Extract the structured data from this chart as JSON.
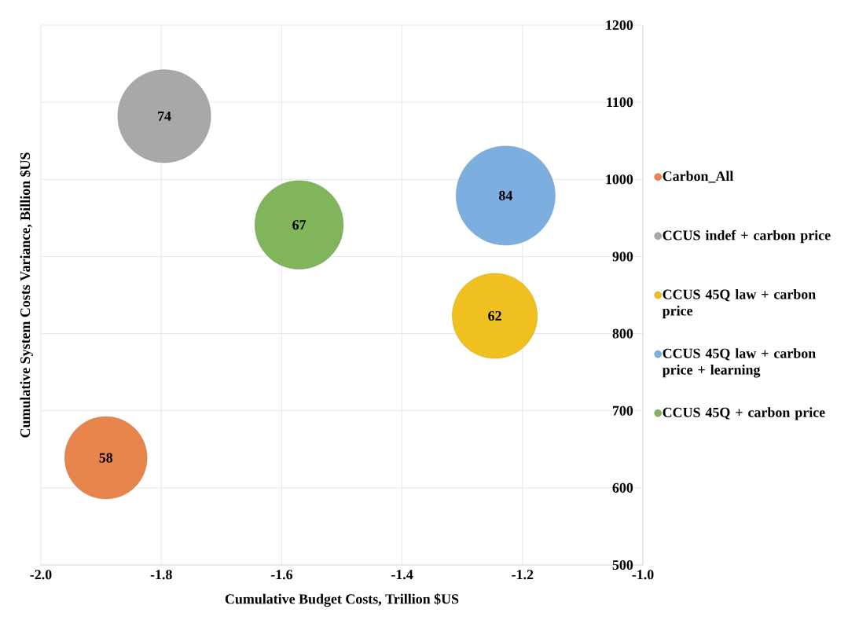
{
  "chart_data": {
    "type": "bubble",
    "xlabel": "Cumulative Budget Costs, Trillion $US",
    "ylabel": "Cumulative System Costs Variance, Billion $US",
    "xlim": [
      -2.0,
      -1.0
    ],
    "xticks": [
      {
        "value": -2.0,
        "label": "-2.0"
      },
      -1.8,
      -1.6,
      -1.4,
      -1.2,
      {
        "value": -1.0,
        "label": "-1.0"
      }
    ],
    "ylim": [
      500,
      1200
    ],
    "yticks": [
      500,
      600,
      700,
      800,
      900,
      1000,
      1100,
      1200
    ],
    "grid": true,
    "legend": "right",
    "series": [
      {
        "name": "Carbon_All",
        "color": "#e8854c",
        "x": [
          -1.892
        ],
        "values": [
          639
        ],
        "sizes": [
          58
        ],
        "value_labels": [
          "58"
        ]
      },
      {
        "name": "CCUS indef + carbon price",
        "color": "#a8a8a8",
        "x": [
          -1.795
        ],
        "values": [
          1082
        ],
        "sizes": [
          74
        ],
        "value_labels": [
          "74"
        ]
      },
      {
        "name": "CCUS 45Q law + carbon price",
        "color": "#f0c020",
        "x": [
          -1.246
        ],
        "values": [
          823
        ],
        "sizes": [
          62
        ],
        "value_labels": [
          "62"
        ]
      },
      {
        "name": "CCUS 45Q law + carbon price + learning",
        "color": "#7cafe0",
        "x": [
          -1.228
        ],
        "values": [
          979
        ],
        "sizes": [
          84
        ],
        "value_labels": [
          "84"
        ]
      },
      {
        "name": "CCUS 45Q + carbon price",
        "color": "#80b55c",
        "x": [
          -1.571
        ],
        "values": [
          941
        ],
        "sizes": [
          67
        ],
        "value_labels": [
          "67"
        ]
      }
    ]
  }
}
